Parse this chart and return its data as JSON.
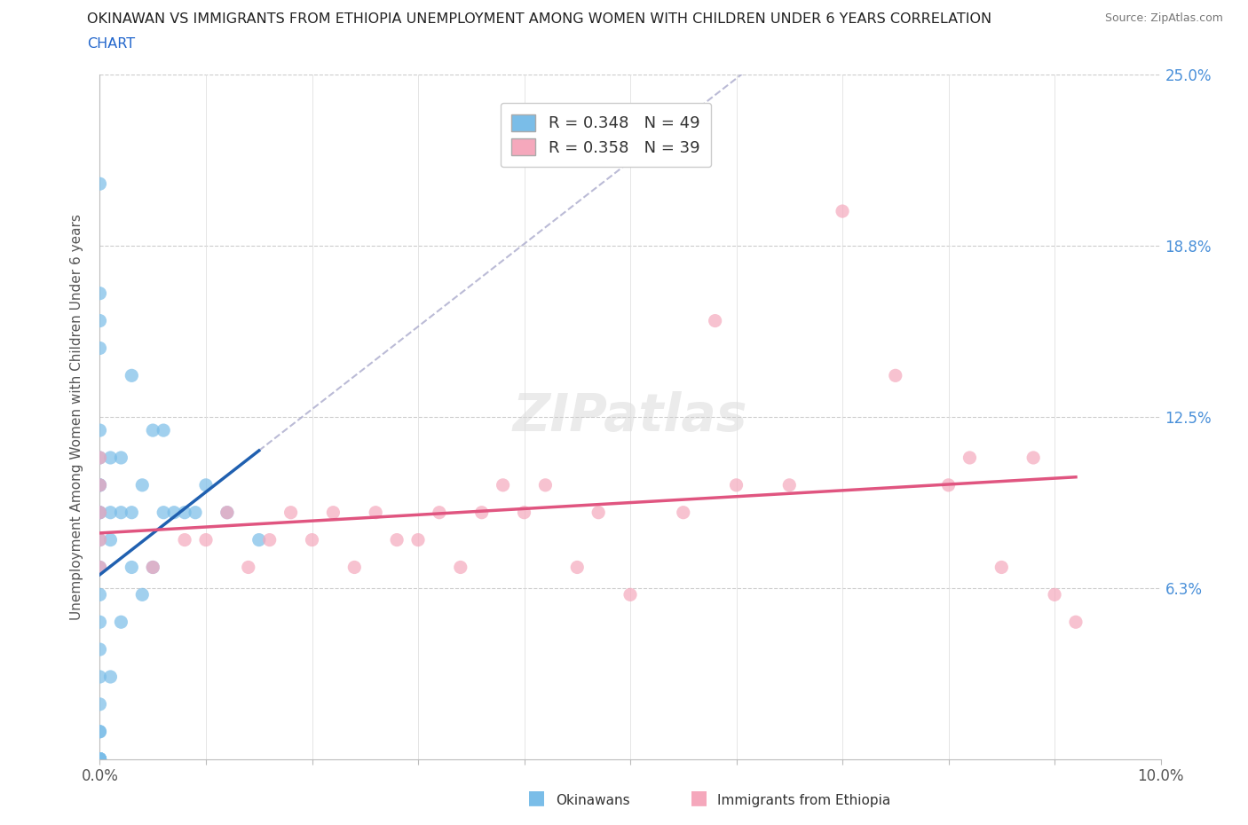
{
  "title_line1": "OKINAWAN VS IMMIGRANTS FROM ETHIOPIA UNEMPLOYMENT AMONG WOMEN WITH CHILDREN UNDER 6 YEARS CORRELATION",
  "title_line2": "CHART",
  "source": "Source: ZipAtlas.com",
  "ylabel": "Unemployment Among Women with Children Under 6 years",
  "xlim": [
    0,
    0.1
  ],
  "ylim": [
    0,
    0.25
  ],
  "ytick_right_vals": [
    0.0,
    0.0625,
    0.125,
    0.1875,
    0.25
  ],
  "ytick_right_labels": [
    "",
    "6.3%",
    "12.5%",
    "18.8%",
    "25.0%"
  ],
  "r_okinawan": 0.348,
  "n_okinawan": 49,
  "r_ethiopia": 0.358,
  "n_ethiopia": 39,
  "color_okinawan": "#7abde8",
  "color_ethiopia": "#f5a8bc",
  "color_okinawan_line": "#2060b0",
  "color_ethiopia_line": "#e05580",
  "watermark": "ZIPatlas",
  "okinawan_x": [
    0.0,
    0.0,
    0.0,
    0.0,
    0.0,
    0.0,
    0.0,
    0.0,
    0.0,
    0.0,
    0.0,
    0.0,
    0.0,
    0.0,
    0.0,
    0.0,
    0.0,
    0.0,
    0.0,
    0.0,
    0.0,
    0.0,
    0.0,
    0.0,
    0.0,
    0.0,
    0.0,
    0.001,
    0.001,
    0.001,
    0.001,
    0.002,
    0.002,
    0.002,
    0.003,
    0.003,
    0.003,
    0.004,
    0.004,
    0.005,
    0.005,
    0.006,
    0.006,
    0.007,
    0.008,
    0.009,
    0.01,
    0.012,
    0.015
  ],
  "okinawan_y": [
    0.0,
    0.0,
    0.0,
    0.0,
    0.0,
    0.0,
    0.0,
    0.0,
    0.01,
    0.01,
    0.02,
    0.03,
    0.04,
    0.05,
    0.06,
    0.07,
    0.08,
    0.09,
    0.09,
    0.1,
    0.1,
    0.11,
    0.12,
    0.15,
    0.16,
    0.17,
    0.21,
    0.03,
    0.08,
    0.09,
    0.11,
    0.05,
    0.09,
    0.11,
    0.07,
    0.09,
    0.14,
    0.06,
    0.1,
    0.07,
    0.12,
    0.09,
    0.12,
    0.09,
    0.09,
    0.09,
    0.1,
    0.09,
    0.08
  ],
  "ethiopia_x": [
    0.0,
    0.0,
    0.0,
    0.0,
    0.0,
    0.005,
    0.008,
    0.01,
    0.012,
    0.014,
    0.016,
    0.018,
    0.02,
    0.022,
    0.024,
    0.026,
    0.028,
    0.03,
    0.032,
    0.034,
    0.036,
    0.038,
    0.04,
    0.042,
    0.045,
    0.047,
    0.05,
    0.055,
    0.058,
    0.06,
    0.065,
    0.07,
    0.075,
    0.08,
    0.082,
    0.085,
    0.088,
    0.09,
    0.092
  ],
  "ethiopia_y": [
    0.07,
    0.08,
    0.09,
    0.1,
    0.11,
    0.07,
    0.08,
    0.08,
    0.09,
    0.07,
    0.08,
    0.09,
    0.08,
    0.09,
    0.07,
    0.09,
    0.08,
    0.08,
    0.09,
    0.07,
    0.09,
    0.1,
    0.09,
    0.1,
    0.07,
    0.09,
    0.06,
    0.09,
    0.16,
    0.1,
    0.1,
    0.2,
    0.14,
    0.1,
    0.11,
    0.07,
    0.11,
    0.06,
    0.05
  ]
}
